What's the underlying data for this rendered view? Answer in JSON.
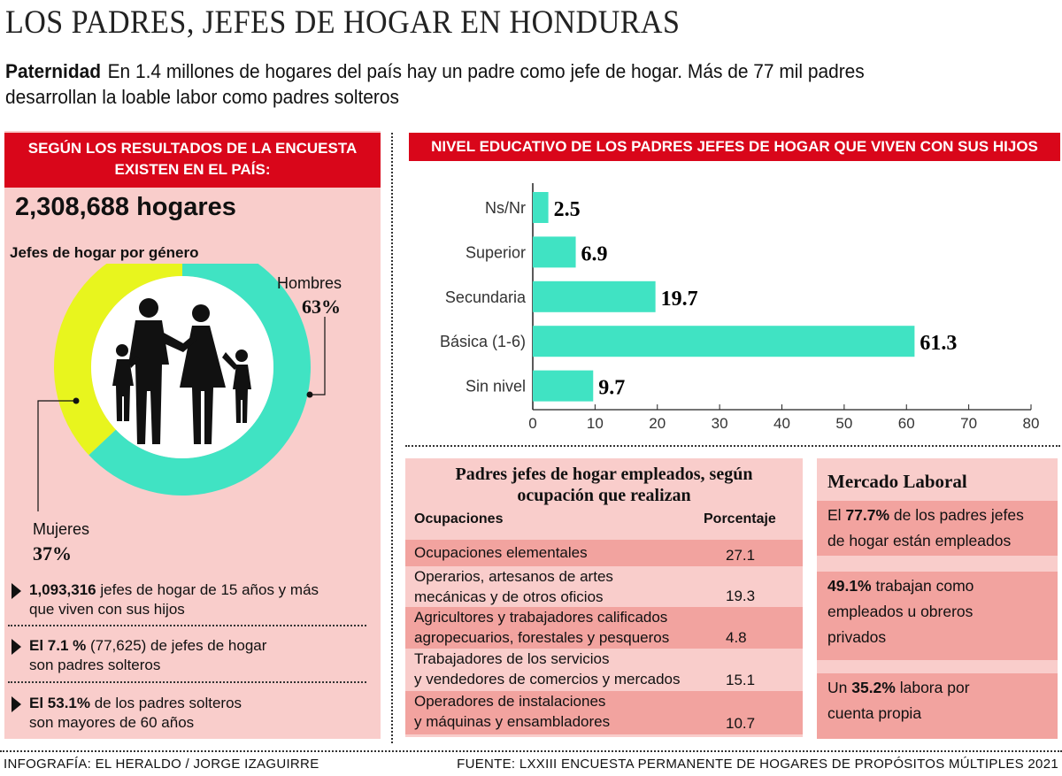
{
  "title": "LOS PADRES, JEFES DE HOGAR EN HONDURAS",
  "subtitle": {
    "lead": "Paternidad",
    "text1": "En 1.4 millones de hogares del país hay un padre como jefe de hogar.  Más de 77 mil padres",
    "text2": "desarrollan la loable labor como padres solteros"
  },
  "left": {
    "header1": "SEGÚN LOS RESULTADOS DE LA ENCUESTA",
    "header2": "EXISTEN EN EL PAÍS:",
    "total": "2,308,688 hogares",
    "chart_title": "Jefes de hogar por género",
    "bullets": [
      {
        "bold": "1,093,316",
        "text": " jefes de hogar de 15 años y más",
        "text2": "que viven con sus hijos"
      },
      {
        "bold": "El 7.1 %",
        "text": " (77,625) de jefes  de hogar",
        "text2": "son padres solteros"
      },
      {
        "bold": "El 53.1%",
        "text": " de los padres solteros",
        "text2": "son mayores de 60 años"
      }
    ]
  },
  "chart_data": [
    {
      "type": "pie",
      "subtype": "donut",
      "title": "Jefes de hogar por género",
      "categories": [
        "Hombres",
        "Mujeres"
      ],
      "values": [
        63,
        37
      ],
      "labels": [
        "63%",
        "37%"
      ],
      "colors": [
        "#40e3c3",
        "#e8f51e"
      ]
    },
    {
      "type": "bar",
      "orientation": "horizontal",
      "title": "NIVEL EDUCATIVO DE LOS PADRES JEFES DE HOGAR QUE VIVEN CON SUS HIJOS",
      "categories": [
        "Ns/Nr",
        "Superior",
        "Secundaria",
        "Básica (1-6)",
        "Sin nivel"
      ],
      "values": [
        2.5,
        6.9,
        19.7,
        61.3,
        9.7
      ],
      "labels": [
        "2.5",
        "6.9",
        "19.7",
        "61.3",
        "9.7"
      ],
      "xlim": [
        0,
        80
      ],
      "xticks": [
        "0",
        "10",
        "20",
        "30",
        "40",
        "50",
        "60",
        "70",
        "80"
      ],
      "color": "#40e3c3",
      "grid": false
    }
  ],
  "table": {
    "title1": "Padres jefes de hogar empleados, según",
    "title2": "ocupación que realizan",
    "col1": "Ocupaciones",
    "col2": "Porcentaje",
    "rows": [
      {
        "l1": "Ocupaciones elementales",
        "l2": "",
        "v": "27.1"
      },
      {
        "l1": "Operarios, artesanos de artes",
        "l2": "mecánicas y de otros oficios",
        "v": "19.3"
      },
      {
        "l1": "Agricultores y trabajadores calificados",
        "l2": "agropecuarios, forestales y pesqueros",
        "v": "4.8"
      },
      {
        "l1": "Trabajadores de los servicios",
        "l2": "y vendedores de comercios y mercados",
        "v": "15.1"
      },
      {
        "l1": "Operadores de instalaciones",
        "l2": "y máquinas y ensambladores",
        "v": "10.7"
      }
    ]
  },
  "mercado": {
    "title": "Mercado Laboral",
    "b1": {
      "pre": "El ",
      "bold": "77.7%",
      "post": " de los padres jefes",
      "l2": "de hogar están empleados"
    },
    "b2": {
      "bold": "49.1%",
      "post": " trabajan como",
      "l2": "empleados u obreros",
      "l3": "privados"
    },
    "b3": {
      "pre": "Un ",
      "bold": "35.2%",
      "post": " labora por",
      "l2": "cuenta propia"
    }
  },
  "footer": {
    "left": "INFOGRAFÍA: EL HERALDO / JORGE IZAGUIRRE",
    "right": "FUENTE: LXXIII ENCUESTA PERMANENTE DE HOGARES DE PROPÓSITOS MÚLTIPLES 2021"
  }
}
